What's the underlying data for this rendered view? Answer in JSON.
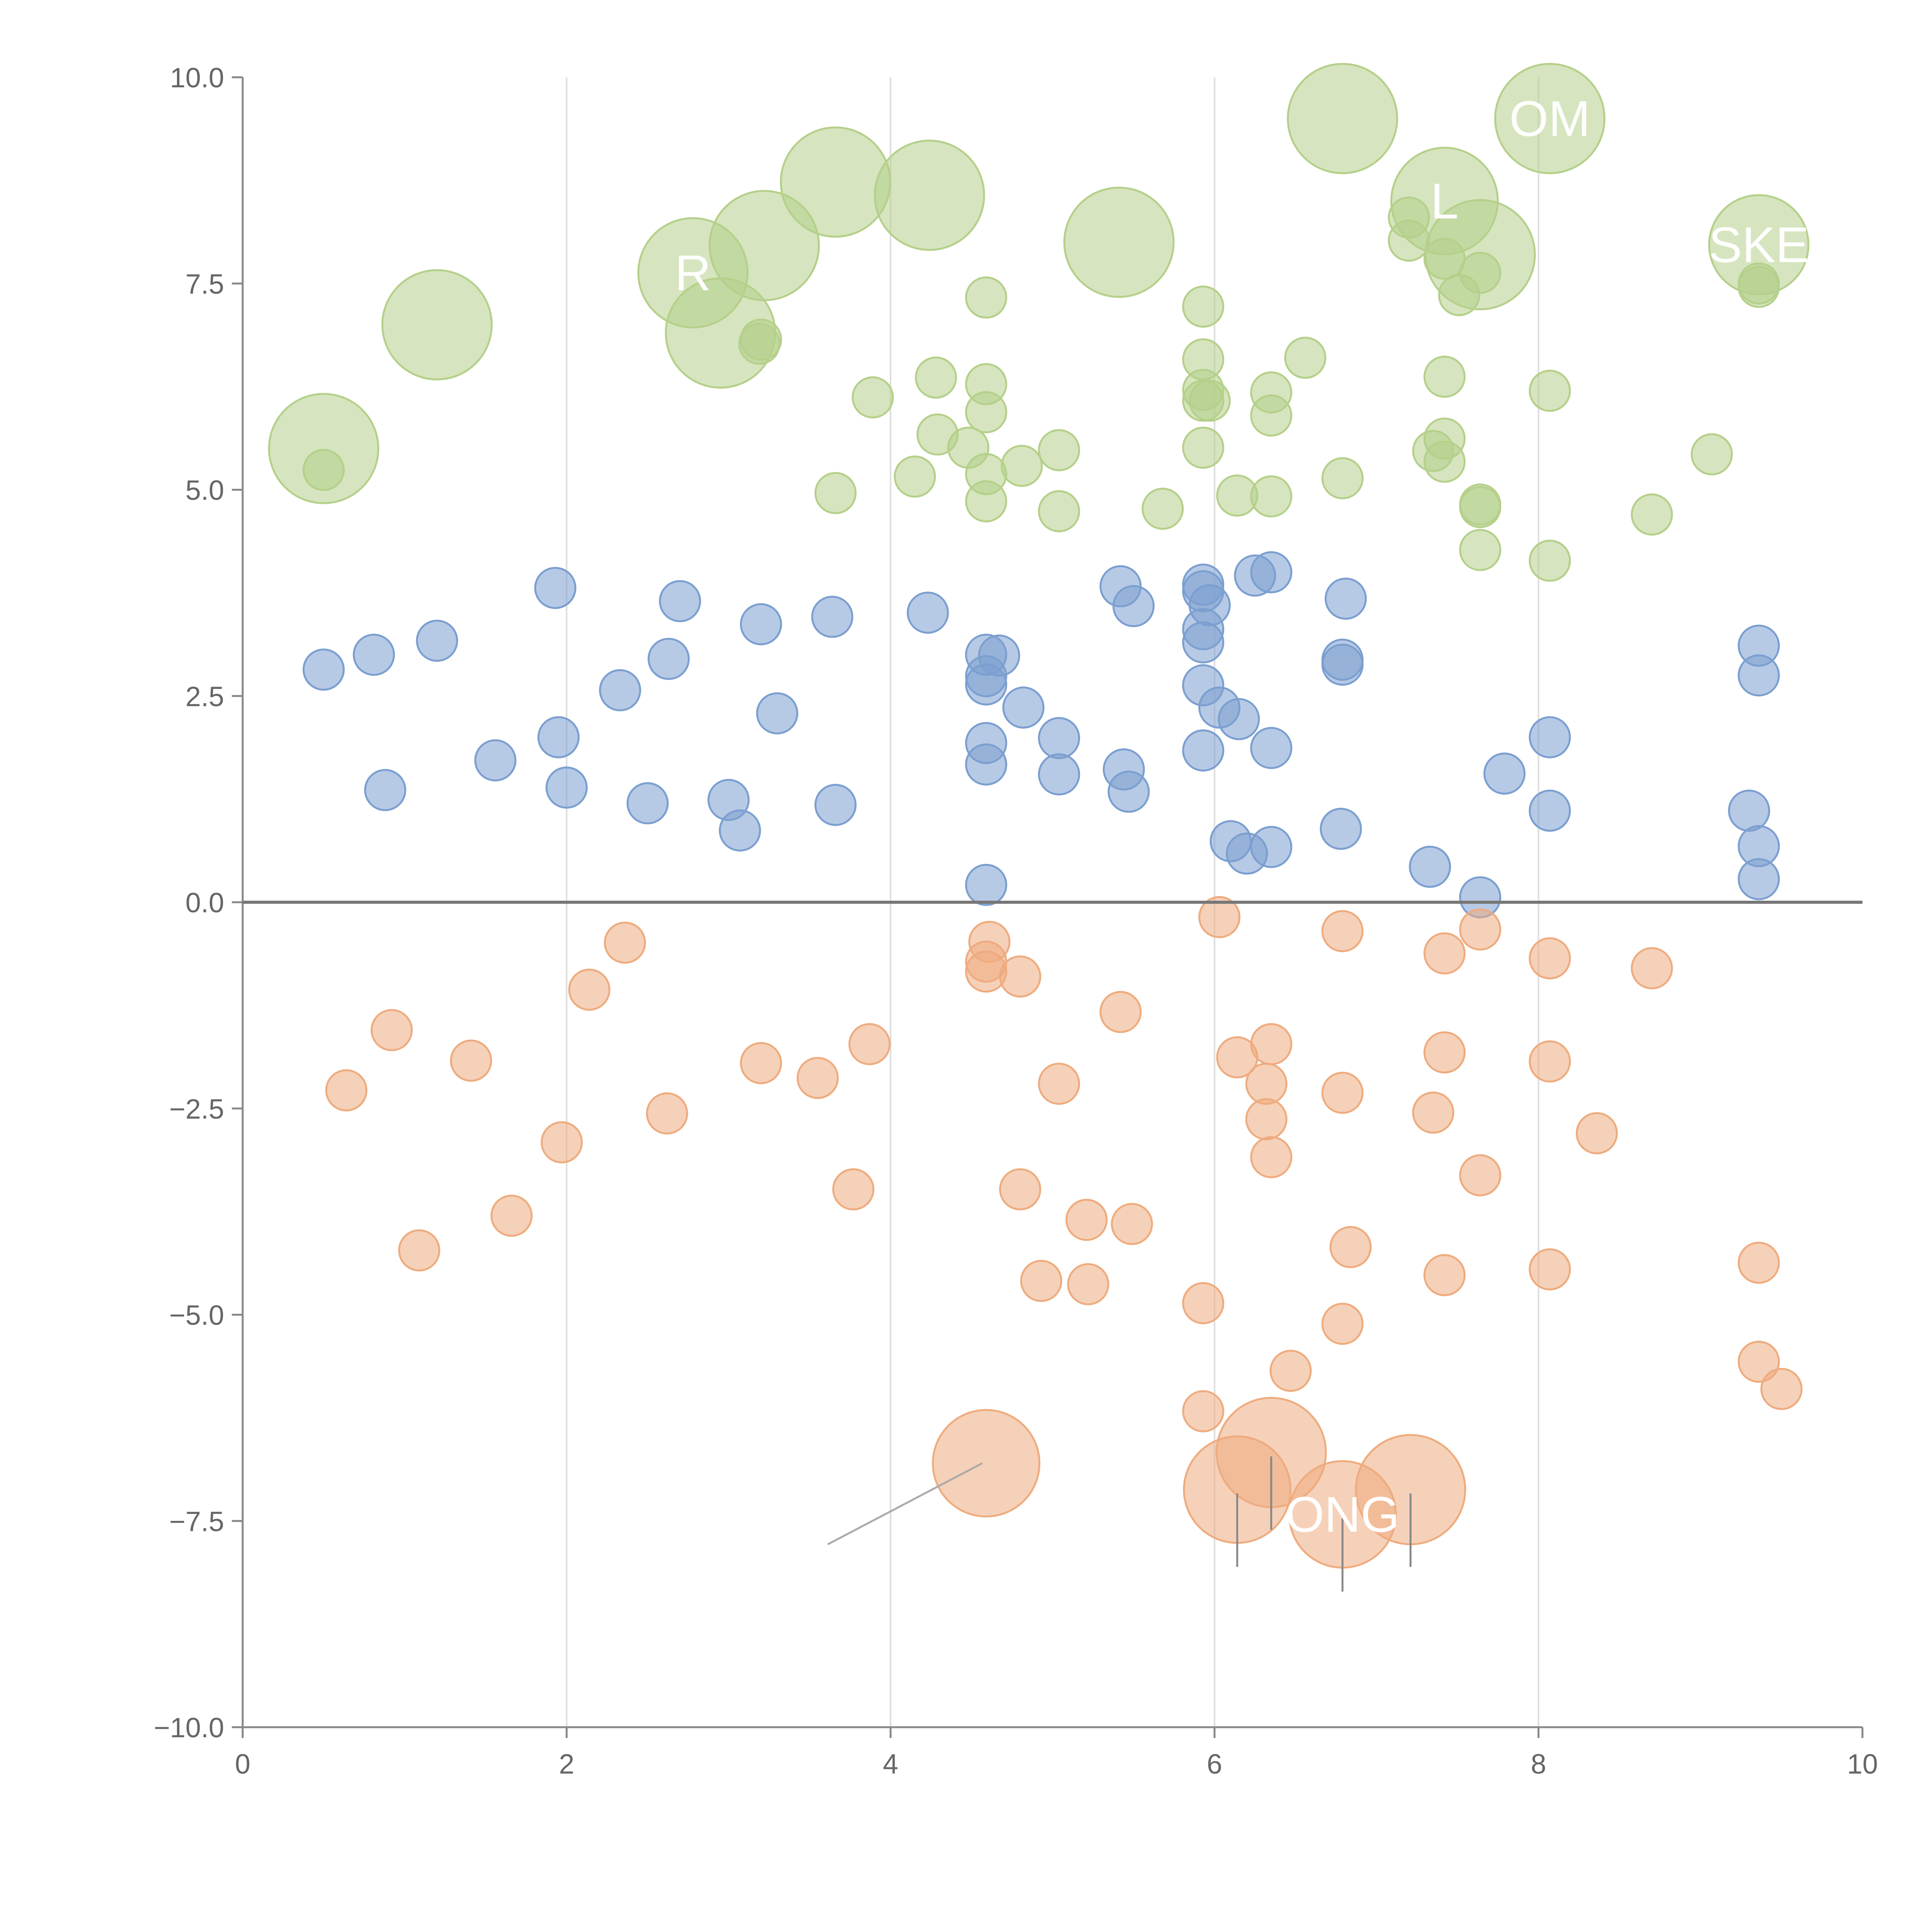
{
  "chart_data": {
    "type": "scatter",
    "title": "",
    "xlabel": "",
    "ylabel": "",
    "xlim": [
      0,
      10
    ],
    "ylim": [
      -10,
      10
    ],
    "x_ticks": [
      "0",
      "2",
      "4",
      "6",
      "8",
      "10"
    ],
    "y_ticks": [
      "10.0",
      "7.5",
      "5.0",
      "2.5",
      "0.0",
      "−2.5",
      "−5.0",
      "−7.5",
      "−10.0"
    ],
    "grid_x": [
      2,
      4,
      6,
      8
    ],
    "zero_line": 0,
    "colors": {
      "blue": "#7b9fd0",
      "green": "#b5d08a",
      "orange": "#eeac7f",
      "axis": "#888888",
      "zero": "#777777",
      "grid": "#dddddd"
    },
    "series": [
      {
        "color": "blue",
        "points": [
          [
            0.5,
            2.82
          ],
          [
            0.81,
            3.0
          ],
          [
            0.88,
            1.36
          ],
          [
            1.2,
            3.17
          ],
          [
            1.56,
            1.72
          ],
          [
            1.93,
            3.81
          ],
          [
            1.95,
            2.0
          ],
          [
            2.0,
            1.39
          ],
          [
            2.33,
            2.57
          ],
          [
            2.5,
            1.2
          ],
          [
            2.63,
            2.95
          ],
          [
            2.7,
            3.65
          ],
          [
            3.0,
            1.24
          ],
          [
            3.07,
            0.87
          ],
          [
            3.2,
            3.37
          ],
          [
            3.3,
            2.29
          ],
          [
            3.64,
            3.46
          ],
          [
            3.66,
            1.18
          ],
          [
            4.23,
            3.51
          ],
          [
            4.59,
            0.21
          ],
          [
            4.59,
            1.67
          ],
          [
            4.59,
            1.93
          ],
          [
            4.59,
            2.64
          ],
          [
            4.59,
            2.74
          ],
          [
            4.59,
            3.0
          ],
          [
            4.67,
            2.99
          ],
          [
            4.82,
            2.36
          ],
          [
            5.04,
            1.55
          ],
          [
            5.04,
            1.99
          ],
          [
            5.42,
            3.83
          ],
          [
            5.44,
            1.61
          ],
          [
            5.47,
            1.34
          ],
          [
            5.5,
            3.59
          ],
          [
            5.93,
            1.84
          ],
          [
            5.93,
            2.63
          ],
          [
            5.93,
            3.15
          ],
          [
            5.93,
            3.31
          ],
          [
            5.93,
            3.77
          ],
          [
            5.93,
            3.85
          ],
          [
            5.97,
            3.6
          ],
          [
            6.03,
            2.36
          ],
          [
            6.1,
            0.74
          ],
          [
            6.15,
            2.22
          ],
          [
            6.2,
            0.59
          ],
          [
            6.25,
            3.96
          ],
          [
            6.35,
            0.67
          ],
          [
            6.35,
            1.87
          ],
          [
            6.35,
            4.0
          ],
          [
            6.78,
            0.89
          ],
          [
            6.79,
            2.88
          ],
          [
            6.79,
            2.94
          ],
          [
            6.81,
            3.68
          ],
          [
            7.33,
            0.43
          ],
          [
            7.64,
            0.06
          ],
          [
            7.79,
            1.56
          ],
          [
            8.07,
            1.11
          ],
          [
            8.07,
            2.0
          ],
          [
            9.3,
            1.11
          ],
          [
            9.36,
            0.28
          ],
          [
            9.36,
            0.68
          ],
          [
            9.36,
            2.75
          ],
          [
            9.36,
            3.11
          ]
        ]
      },
      {
        "color": "green",
        "points": [
          [
            0.5,
            5.24
          ],
          [
            3.19,
            6.77
          ],
          [
            3.2,
            6.82
          ],
          [
            3.66,
            4.96
          ],
          [
            3.89,
            6.12
          ],
          [
            4.15,
            5.16
          ],
          [
            4.28,
            6.36
          ],
          [
            4.29,
            5.67
          ],
          [
            4.48,
            5.51
          ],
          [
            4.59,
            4.86
          ],
          [
            4.59,
            5.19
          ],
          [
            4.59,
            5.94
          ],
          [
            4.59,
            6.28
          ],
          [
            4.59,
            7.33
          ],
          [
            4.81,
            5.29
          ],
          [
            5.04,
            4.74
          ],
          [
            5.04,
            5.48
          ],
          [
            5.68,
            4.77
          ],
          [
            5.93,
            5.51
          ],
          [
            5.93,
            6.08
          ],
          [
            5.93,
            6.21
          ],
          [
            5.93,
            6.58
          ],
          [
            5.93,
            7.22
          ],
          [
            5.97,
            6.08
          ],
          [
            6.14,
            4.93
          ],
          [
            6.35,
            4.92
          ],
          [
            6.35,
            5.9
          ],
          [
            6.35,
            6.18
          ],
          [
            6.56,
            6.6
          ],
          [
            6.79,
            5.14
          ],
          [
            7.2,
            8.02
          ],
          [
            7.2,
            8.3
          ],
          [
            7.35,
            5.47
          ],
          [
            7.42,
            5.34
          ],
          [
            7.42,
            5.62
          ],
          [
            7.42,
            6.37
          ],
          [
            7.42,
            7.8
          ],
          [
            7.51,
            7.36
          ],
          [
            7.64,
            4.27
          ],
          [
            7.64,
            4.79
          ],
          [
            7.64,
            4.82
          ],
          [
            7.64,
            7.63
          ],
          [
            8.07,
            4.14
          ],
          [
            8.07,
            6.2
          ],
          [
            8.7,
            4.7
          ],
          [
            9.07,
            5.43
          ],
          [
            9.36,
            7.46
          ],
          [
            9.36,
            7.5
          ]
        ]
      },
      {
        "color": "orange",
        "points": [
          [
            0.64,
            -2.28
          ],
          [
            0.92,
            -1.55
          ],
          [
            1.09,
            -4.22
          ],
          [
            1.41,
            -1.92
          ],
          [
            1.66,
            -3.8
          ],
          [
            1.97,
            -2.91
          ],
          [
            2.14,
            -1.06
          ],
          [
            2.36,
            -0.49
          ],
          [
            2.62,
            -2.56
          ],
          [
            3.2,
            -1.95
          ],
          [
            3.55,
            -2.13
          ],
          [
            3.77,
            -3.48
          ],
          [
            3.87,
            -1.72
          ],
          [
            4.59,
            -0.72
          ],
          [
            4.59,
            -0.84
          ],
          [
            4.61,
            -0.48
          ],
          [
            4.8,
            -0.9
          ],
          [
            4.8,
            -3.48
          ],
          [
            4.93,
            -4.59
          ],
          [
            5.04,
            -2.2
          ],
          [
            5.21,
            -3.85
          ],
          [
            5.22,
            -4.63
          ],
          [
            5.42,
            -1.33
          ],
          [
            5.49,
            -3.9
          ],
          [
            5.93,
            -4.86
          ],
          [
            5.93,
            -6.17
          ],
          [
            6.03,
            -0.18
          ],
          [
            6.14,
            -1.88
          ],
          [
            6.32,
            -2.2
          ],
          [
            6.32,
            -2.63
          ],
          [
            6.35,
            -1.72
          ],
          [
            6.35,
            -3.09
          ],
          [
            6.47,
            -5.68
          ],
          [
            6.79,
            -0.35
          ],
          [
            6.79,
            -2.31
          ],
          [
            6.79,
            -5.11
          ],
          [
            6.84,
            -4.18
          ],
          [
            7.35,
            -2.55
          ],
          [
            7.42,
            -0.62
          ],
          [
            7.42,
            -1.82
          ],
          [
            7.42,
            -4.52
          ],
          [
            7.64,
            -0.33
          ],
          [
            7.64,
            -3.31
          ],
          [
            8.07,
            -0.68
          ],
          [
            8.07,
            -1.93
          ],
          [
            8.07,
            -4.45
          ],
          [
            8.36,
            -2.8
          ],
          [
            8.7,
            -0.8
          ],
          [
            9.36,
            -4.37
          ],
          [
            9.36,
            -5.57
          ],
          [
            9.5,
            -5.9
          ]
        ]
      }
    ],
    "labeled_bubbles": [
      {
        "color": "green",
        "x": 0.5,
        "y": 5.5,
        "r": 2.0,
        "label": ""
      },
      {
        "color": "green",
        "x": 1.2,
        "y": 7.0,
        "r": 2.0,
        "label": ""
      },
      {
        "color": "green",
        "x": 2.78,
        "y": 7.63,
        "r": 2.0,
        "label": "R"
      },
      {
        "color": "green",
        "x": 2.95,
        "y": 6.9,
        "r": 2.0,
        "label": ""
      },
      {
        "color": "green",
        "x": 3.22,
        "y": 7.96,
        "r": 2.0,
        "label": ""
      },
      {
        "color": "green",
        "x": 3.66,
        "y": 8.73,
        "r": 2.0,
        "label": ""
      },
      {
        "color": "green",
        "x": 4.24,
        "y": 8.57,
        "r": 2.0,
        "label": ""
      },
      {
        "color": "green",
        "x": 5.41,
        "y": 8.0,
        "r": 2.0,
        "label": ""
      },
      {
        "color": "green",
        "x": 6.79,
        "y": 9.5,
        "r": 2.0,
        "label": ""
      },
      {
        "color": "green",
        "x": 7.42,
        "y": 8.5,
        "r": 1.9,
        "label": "L"
      },
      {
        "color": "green",
        "x": 7.64,
        "y": 7.85,
        "r": 2.0,
        "label": ""
      },
      {
        "color": "green",
        "x": 8.07,
        "y": 9.5,
        "r": 2.0,
        "label": "OM"
      },
      {
        "color": "green",
        "x": 9.36,
        "y": 7.97,
        "r": 1.65,
        "label": "SKE"
      },
      {
        "color": "orange",
        "x": 4.59,
        "y": -6.8,
        "r": 1.9,
        "label": ""
      },
      {
        "color": "orange",
        "x": 6.14,
        "y": -7.12,
        "r": 1.9,
        "label": ""
      },
      {
        "color": "orange",
        "x": 6.35,
        "y": -6.67,
        "r": 2.0,
        "label": ""
      },
      {
        "color": "orange",
        "x": 6.79,
        "y": -7.42,
        "r": 1.9,
        "label": "ONG"
      },
      {
        "color": "orange",
        "x": 7.21,
        "y": -7.12,
        "r": 2.0,
        "label": ""
      }
    ]
  }
}
